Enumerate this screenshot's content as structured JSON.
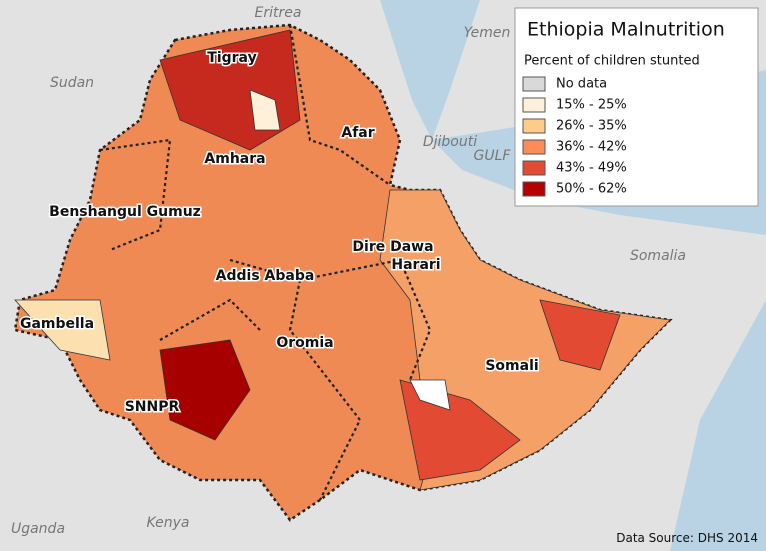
{
  "title": "Ethiopia Malnutrition",
  "legend": {
    "title": "Percent of children stunted",
    "items": [
      {
        "label": "No data",
        "color": "#d9d9d9"
      },
      {
        "label": "15% - 25%",
        "color": "#fef0d9"
      },
      {
        "label": "26% - 35%",
        "color": "#fdcc8a"
      },
      {
        "label": "36% - 42%",
        "color": "#fc8d59"
      },
      {
        "label": "43% - 49%",
        "color": "#e34a33"
      },
      {
        "label": "50% - 62%",
        "color": "#b30000"
      }
    ]
  },
  "countries": [
    "Eritrea",
    "Yemen",
    "Sudan",
    "Djibouti",
    "GULF",
    "Somalia",
    "Uganda",
    "Kenya"
  ],
  "regions": [
    "Tigray",
    "Afar",
    "Amhara",
    "Benshangul Gumuz",
    "Dire Dawa",
    "Harari",
    "Addis Ababa",
    "Gambella",
    "Oromia",
    "Somali",
    "SNNPR"
  ],
  "source": "Data Source: DHS 2014"
}
